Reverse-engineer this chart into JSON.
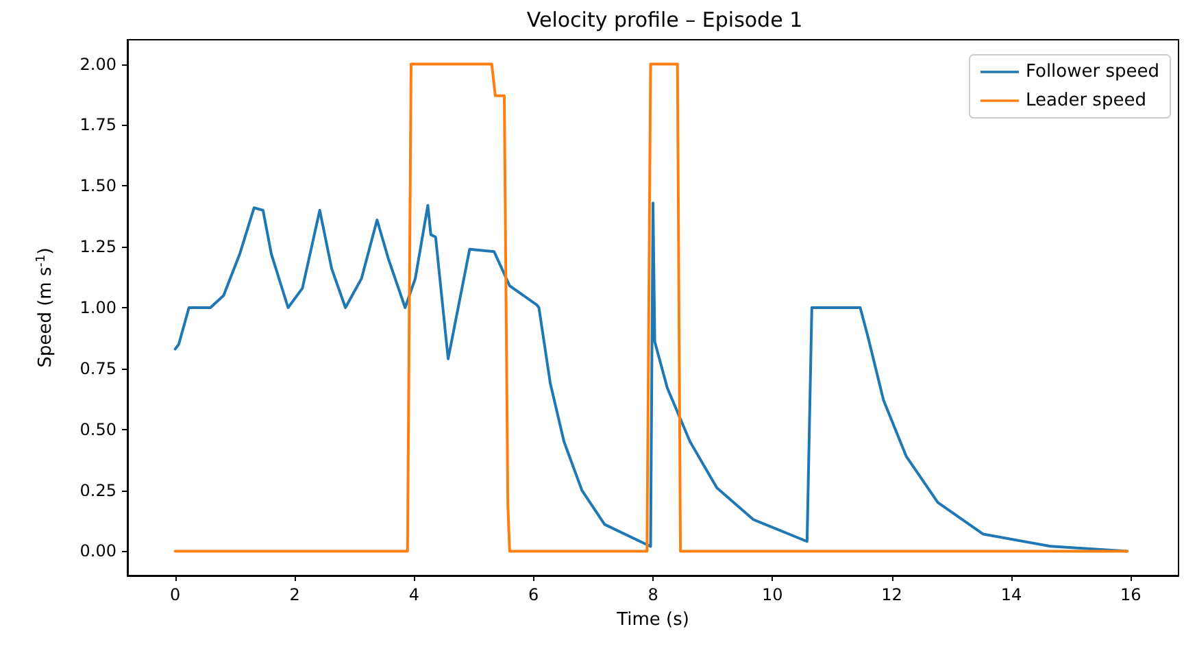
{
  "chart_data": {
    "type": "line",
    "title": "Velocity profile – Episode 1",
    "xlabel": "Time (s)",
    "ylabel": "Speed (m s$^{-1}$)",
    "xlim": [
      -0.8,
      16.8
    ],
    "xticks": [
      0,
      2,
      4,
      6,
      8,
      10,
      12,
      14,
      16
    ],
    "ylim": [
      -0.1,
      2.1
    ],
    "yticks": [
      {
        "value": 0,
        "label": "0.00"
      },
      {
        "value": 0.25,
        "label": "0.25"
      },
      {
        "value": 0.5,
        "label": "0.50"
      },
      {
        "value": 0.75,
        "label": "0.75"
      },
      {
        "value": 1,
        "label": "1.00"
      },
      {
        "value": 1.25,
        "label": "1.25"
      },
      {
        "value": 1.5,
        "label": "1.50"
      },
      {
        "value": 1.75,
        "label": "1.75"
      },
      {
        "value": 2,
        "label": "2.00"
      }
    ],
    "grid": false,
    "legend": "top right",
    "marker": "none",
    "line_style": "solid",
    "series": [
      {
        "name": "Follower speed",
        "color": "#1f77b4",
        "x": [
          0,
          0.06,
          0.23,
          0.59,
          0.81,
          1.08,
          1.32,
          1.47,
          1.61,
          1.89,
          2.13,
          2.42,
          2.62,
          2.85,
          3.12,
          3.38,
          3.57,
          3.85,
          4.02,
          4.23,
          4.28,
          4.36,
          4.57,
          4.93,
          5.34,
          5.6,
          6.06,
          6.09,
          6.28,
          6.51,
          6.81,
          7.19,
          7.87,
          7.96,
          8.0,
          8.03,
          8.24,
          8.62,
          9.07,
          9.68,
          10.58,
          10.66,
          11.47,
          11.6,
          11.86,
          12.24,
          12.77,
          13.53,
          14.66,
          15.94
        ],
        "values": [
          0.83,
          0.85,
          1.0,
          1.0,
          1.05,
          1.22,
          1.41,
          1.4,
          1.22,
          1.0,
          1.08,
          1.4,
          1.16,
          1.0,
          1.12,
          1.36,
          1.2,
          1.0,
          1.12,
          1.42,
          1.3,
          1.29,
          0.79,
          1.24,
          1.23,
          1.09,
          1.01,
          1.0,
          0.69,
          0.45,
          0.25,
          0.11,
          0.03,
          0.02,
          1.43,
          0.86,
          0.67,
          0.45,
          0.26,
          0.13,
          0.04,
          1.0,
          1.0,
          0.88,
          0.62,
          0.39,
          0.2,
          0.07,
          0.02,
          0.0
        ]
      },
      {
        "name": "Leader speed",
        "color": "#ff7f0e",
        "x": [
          0,
          3.89,
          3.95,
          5.3,
          5.36,
          5.51,
          5.57,
          5.6,
          7.9,
          7.96,
          8.41,
          8.46,
          15.94
        ],
        "values": [
          0,
          0,
          2.0,
          2.0,
          1.87,
          1.87,
          0.19,
          0,
          0,
          2.0,
          2.0,
          0,
          0
        ]
      }
    ]
  }
}
